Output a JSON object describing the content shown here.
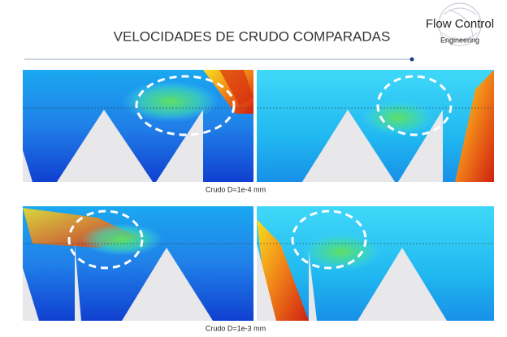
{
  "header": {
    "title": "VELOCIDADES DE CRUDO COMPARADAS"
  },
  "logo": {
    "name": "Flow Control",
    "tagline": "Engineering"
  },
  "captions": [
    "Crudo D=1e-4 mm",
    "Crudo D=1e-3 mm"
  ]
}
